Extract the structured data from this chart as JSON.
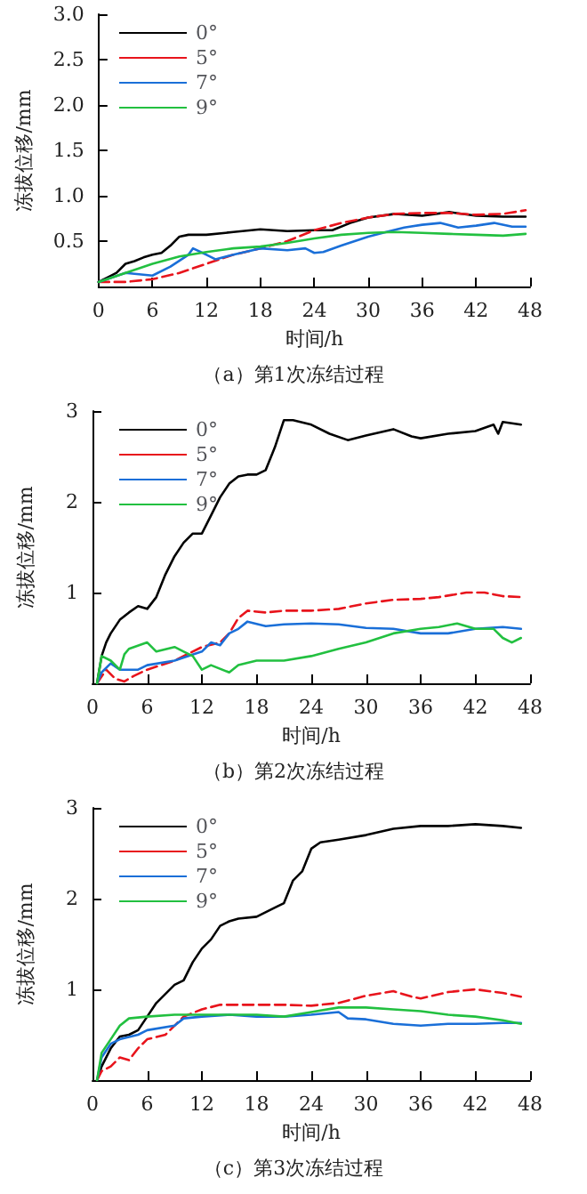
{
  "chart_data": [
    {
      "type": "line",
      "title": "（a）第1次冻结过程",
      "xlabel": "时间/h",
      "ylabel": "冻拔位移/mm",
      "xlim": [
        0,
        48
      ],
      "xticks": [
        0,
        6,
        12,
        18,
        24,
        30,
        36,
        42,
        48
      ],
      "ylim": [
        0,
        3
      ],
      "yticks": [
        0.5,
        {
          "value": 1,
          "label": "1.0"
        },
        1.5,
        {
          "value": 2,
          "label": "2.0"
        },
        2.5,
        {
          "value": 3,
          "label": "3.0"
        }
      ],
      "legend": "top left",
      "grid": false,
      "marker": "none",
      "series": [
        {
          "name": "0°",
          "color": "#000000",
          "line_style": "solid",
          "x": [
            0,
            1,
            2,
            3,
            4,
            5,
            6,
            7,
            8,
            9,
            10,
            12,
            15,
            18,
            21,
            24,
            26,
            28,
            30,
            33,
            36,
            39,
            42,
            45,
            47.5
          ],
          "values": [
            0.05,
            0.1,
            0.15,
            0.25,
            0.28,
            0.32,
            0.35,
            0.37,
            0.45,
            0.55,
            0.57,
            0.57,
            0.6,
            0.63,
            0.61,
            0.62,
            0.62,
            0.7,
            0.76,
            0.8,
            0.78,
            0.82,
            0.78,
            0.77,
            0.77
          ]
        },
        {
          "name": "5°",
          "color": "#e8141c",
          "line_style": "dashed",
          "x": [
            0,
            3,
            6,
            9,
            12,
            15,
            18,
            21,
            24,
            27,
            30,
            33,
            36,
            39,
            42,
            45,
            47.5
          ],
          "values": [
            0.05,
            0.05,
            0.08,
            0.15,
            0.25,
            0.35,
            0.42,
            0.5,
            0.62,
            0.7,
            0.76,
            0.8,
            0.81,
            0.81,
            0.79,
            0.8,
            0.84
          ]
        },
        {
          "name": "7°",
          "color": "#1a6fd8",
          "line_style": "solid",
          "x": [
            0,
            3,
            6,
            8,
            10,
            10.5,
            12,
            13,
            15,
            18,
            21,
            23,
            24,
            25,
            27,
            30,
            32,
            34,
            36,
            38,
            40,
            42,
            44,
            46,
            47.5
          ],
          "values": [
            0.05,
            0.15,
            0.12,
            0.22,
            0.35,
            0.42,
            0.35,
            0.3,
            0.35,
            0.42,
            0.4,
            0.42,
            0.37,
            0.38,
            0.45,
            0.55,
            0.6,
            0.65,
            0.68,
            0.7,
            0.65,
            0.67,
            0.7,
            0.66,
            0.66
          ]
        },
        {
          "name": "9°",
          "color": "#22c040",
          "line_style": "solid",
          "x": [
            0,
            3,
            6,
            9,
            12,
            15,
            18,
            21,
            24,
            27,
            30,
            33,
            36,
            39,
            42,
            45,
            47.5
          ],
          "values": [
            0.05,
            0.15,
            0.25,
            0.33,
            0.38,
            0.42,
            0.44,
            0.48,
            0.53,
            0.57,
            0.59,
            0.6,
            0.59,
            0.58,
            0.57,
            0.56,
            0.58
          ]
        }
      ]
    },
    {
      "type": "line",
      "title": "（b）第2次冻结过程",
      "xlabel": "时间/h",
      "ylabel": "冻拔位移/mm",
      "xlim": [
        0,
        48
      ],
      "xticks": [
        0,
        6,
        12,
        18,
        24,
        30,
        36,
        42,
        48
      ],
      "ylim": [
        0,
        3
      ],
      "yticks": [
        1,
        2,
        3
      ],
      "legend": "top left",
      "grid": false,
      "marker": "none",
      "series": [
        {
          "name": "0°",
          "color": "#000000",
          "line_style": "solid",
          "x": [
            0.5,
            1,
            1.5,
            2,
            3,
            4,
            5,
            6,
            7,
            8,
            9,
            10,
            11,
            12,
            13,
            14,
            15,
            16,
            17,
            18,
            19,
            20,
            21,
            22,
            24,
            26,
            28,
            30,
            33,
            35,
            36,
            39,
            42,
            44,
            44.5,
            45,
            47
          ],
          "values": [
            0,
            0.3,
            0.45,
            0.55,
            0.7,
            0.78,
            0.85,
            0.82,
            0.95,
            1.2,
            1.4,
            1.55,
            1.65,
            1.65,
            1.85,
            2.05,
            2.2,
            2.28,
            2.3,
            2.3,
            2.35,
            2.6,
            2.9,
            2.9,
            2.85,
            2.75,
            2.68,
            2.73,
            2.8,
            2.72,
            2.7,
            2.75,
            2.78,
            2.85,
            2.75,
            2.88,
            2.85
          ]
        },
        {
          "name": "5°",
          "color": "#e8141c",
          "line_style": "dashed",
          "x": [
            0.5,
            1.5,
            2.5,
            3.5,
            4.5,
            6,
            9,
            12,
            14,
            15,
            16,
            17,
            19,
            21,
            24,
            27,
            30,
            33,
            36,
            38,
            41,
            43,
            45,
            47
          ],
          "values": [
            0,
            0.15,
            0.05,
            0.02,
            0.08,
            0.15,
            0.25,
            0.4,
            0.45,
            0.55,
            0.72,
            0.8,
            0.78,
            0.8,
            0.8,
            0.82,
            0.88,
            0.92,
            0.93,
            0.95,
            1,
            1,
            0.96,
            0.95
          ]
        },
        {
          "name": "7°",
          "color": "#1a6fd8",
          "line_style": "solid",
          "x": [
            0.5,
            1,
            2,
            3,
            5,
            6,
            9,
            12,
            13,
            14,
            15,
            16,
            17,
            19,
            21,
            24,
            27,
            30,
            33,
            36,
            39,
            42,
            45,
            47
          ],
          "values": [
            0,
            0.12,
            0.22,
            0.15,
            0.15,
            0.2,
            0.25,
            0.35,
            0.45,
            0.42,
            0.55,
            0.6,
            0.68,
            0.63,
            0.65,
            0.66,
            0.65,
            0.61,
            0.6,
            0.55,
            0.55,
            0.6,
            0.62,
            0.6
          ]
        },
        {
          "name": "9°",
          "color": "#22c040",
          "line_style": "solid",
          "x": [
            0.5,
            1,
            2,
            3,
            3.5,
            4,
            6,
            7,
            9,
            10,
            11,
            12,
            13,
            15,
            16,
            18,
            21,
            24,
            27,
            30,
            33,
            36,
            38,
            40,
            42,
            44,
            45,
            46,
            47
          ],
          "values": [
            0,
            0.3,
            0.25,
            0.15,
            0.32,
            0.38,
            0.45,
            0.35,
            0.4,
            0.35,
            0.3,
            0.15,
            0.2,
            0.12,
            0.2,
            0.25,
            0.25,
            0.3,
            0.38,
            0.45,
            0.55,
            0.6,
            0.62,
            0.66,
            0.6,
            0.6,
            0.5,
            0.45,
            0.5
          ]
        }
      ]
    },
    {
      "type": "line",
      "title": "（c）第3次冻结过程",
      "xlabel": "时间/h",
      "ylabel": "冻拔位移/mm",
      "xlim": [
        0,
        48
      ],
      "xticks": [
        0,
        6,
        12,
        18,
        24,
        30,
        36,
        42,
        48
      ],
      "ylim": [
        0,
        3
      ],
      "yticks": [
        1,
        2,
        3
      ],
      "legend": "top left",
      "grid": false,
      "marker": "none",
      "series": [
        {
          "name": "0°",
          "color": "#000000",
          "line_style": "solid",
          "x": [
            0.5,
            1,
            2,
            3,
            4,
            5,
            6,
            7,
            8,
            9,
            10,
            11,
            12,
            13,
            14,
            15,
            16,
            18,
            20,
            21,
            22,
            23,
            24,
            25,
            27,
            30,
            33,
            36,
            39,
            42,
            45,
            47
          ],
          "values": [
            0,
            0.15,
            0.35,
            0.48,
            0.5,
            0.55,
            0.7,
            0.85,
            0.95,
            1.05,
            1.1,
            1.3,
            1.45,
            1.55,
            1.7,
            1.75,
            1.78,
            1.8,
            1.9,
            1.95,
            2.2,
            2.3,
            2.55,
            2.62,
            2.65,
            2.7,
            2.77,
            2.8,
            2.8,
            2.82,
            2.8,
            2.78
          ]
        },
        {
          "name": "5°",
          "color": "#e8141c",
          "line_style": "dashed",
          "x": [
            0.5,
            1,
            2,
            3,
            4,
            5,
            6,
            8,
            9,
            10,
            12,
            14,
            18,
            21,
            24,
            27,
            30,
            33,
            35,
            36,
            39,
            42,
            45,
            47
          ],
          "values": [
            0,
            0.1,
            0.15,
            0.25,
            0.22,
            0.35,
            0.45,
            0.5,
            0.6,
            0.7,
            0.78,
            0.83,
            0.83,
            0.83,
            0.82,
            0.85,
            0.93,
            0.98,
            0.92,
            0.9,
            0.97,
            1,
            0.96,
            0.92
          ]
        },
        {
          "name": "7°",
          "color": "#1a6fd8",
          "line_style": "solid",
          "x": [
            0.5,
            1,
            2,
            3,
            5,
            6,
            9,
            10,
            12,
            15,
            18,
            21,
            24,
            27,
            28,
            30,
            33,
            36,
            39,
            42,
            45,
            47
          ],
          "values": [
            0,
            0.25,
            0.4,
            0.45,
            0.5,
            0.55,
            0.6,
            0.68,
            0.7,
            0.72,
            0.7,
            0.7,
            0.72,
            0.75,
            0.68,
            0.67,
            0.62,
            0.6,
            0.62,
            0.62,
            0.63,
            0.63
          ]
        },
        {
          "name": "9°",
          "color": "#22c040",
          "line_style": "solid",
          "x": [
            0.5,
            1,
            2,
            3,
            4,
            6,
            9,
            12,
            15,
            18,
            21,
            24,
            27,
            30,
            33,
            36,
            39,
            42,
            45,
            47
          ],
          "values": [
            0,
            0.3,
            0.45,
            0.6,
            0.68,
            0.7,
            0.72,
            0.72,
            0.72,
            0.72,
            0.7,
            0.75,
            0.8,
            0.8,
            0.78,
            0.76,
            0.72,
            0.7,
            0.66,
            0.62
          ]
        }
      ]
    }
  ]
}
